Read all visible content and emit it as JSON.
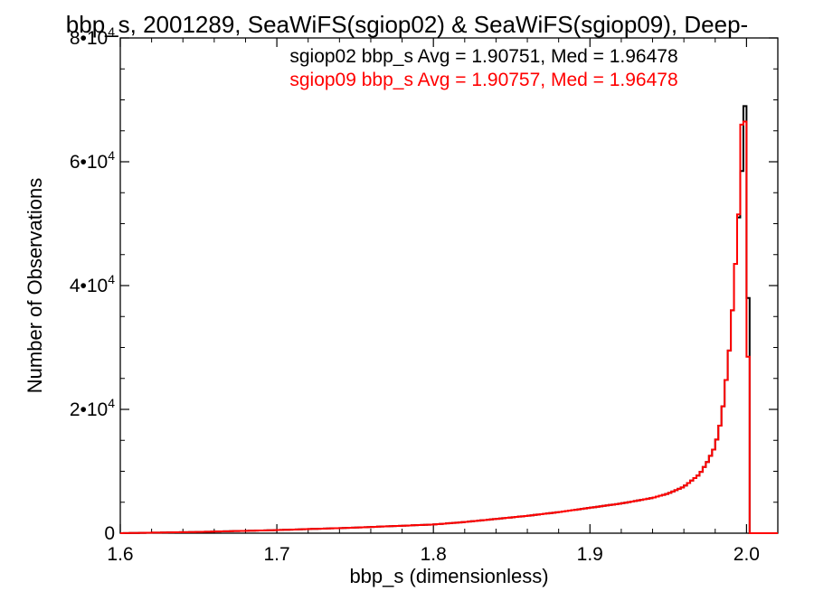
{
  "chart_data": {
    "type": "bar",
    "title": "bbp_s, 2001289, SeaWiFS(sgiop02) & SeaWiFS(sgiop09), Deep-",
    "xlabel": "bbp_s (dimensionless)",
    "ylabel": "Number of Observations",
    "xlim": [
      1.6,
      2.02
    ],
    "ylim": [
      0,
      80000
    ],
    "x_ticks": [
      {
        "value": 1.6,
        "label": "1.6"
      },
      {
        "value": 1.7,
        "label": "1.7"
      },
      {
        "value": 1.8,
        "label": "1.8"
      },
      {
        "value": 1.9,
        "label": "1.9"
      },
      {
        "value": 2.0,
        "label": "2.0"
      }
    ],
    "y_ticks": [
      {
        "value": 0,
        "mant": "0",
        "exp": ""
      },
      {
        "value": 20000,
        "mant": "2•10",
        "exp": "4"
      },
      {
        "value": 40000,
        "mant": "4•10",
        "exp": "4"
      },
      {
        "value": 60000,
        "mant": "6•10",
        "exp": "4"
      },
      {
        "value": 80000,
        "mant": "8•10",
        "exp": "4"
      }
    ],
    "bin_width": 0.002,
    "annotations": [
      {
        "text": "sgiop02 bbp_s Avg = 1.90751, Med = 1.96478",
        "color": "#000000"
      },
      {
        "text": "sgiop09 bbp_s Avg = 1.90757, Med = 1.96478",
        "color": "#ff0000"
      }
    ],
    "series": [
      {
        "color": "#000000",
        "x": [
          1.6,
          1.65,
          1.7,
          1.75,
          1.8,
          1.82,
          1.84,
          1.86,
          1.88,
          1.9,
          1.92,
          1.94,
          1.95,
          1.96,
          1.97,
          1.975,
          1.98,
          1.984,
          1.986,
          1.988,
          1.99,
          1.992,
          1.994,
          1.996,
          1.998,
          2.0,
          2.002,
          2.02
        ],
        "values": [
          0,
          200,
          500,
          900,
          1400,
          1800,
          2300,
          2800,
          3400,
          4100,
          4800,
          5700,
          6400,
          7500,
          9500,
          11500,
          14000,
          18500,
          22500,
          27000,
          32000,
          40000,
          47000,
          55000,
          62000,
          76000,
          0,
          0
        ]
      },
      {
        "color": "#ff0000",
        "x": [
          1.6,
          1.65,
          1.7,
          1.75,
          1.8,
          1.82,
          1.84,
          1.86,
          1.88,
          1.9,
          1.92,
          1.94,
          1.95,
          1.96,
          1.97,
          1.975,
          1.98,
          1.984,
          1.986,
          1.988,
          1.99,
          1.992,
          1.994,
          1.996,
          1.998,
          2.0,
          2.002,
          2.02
        ],
        "values": [
          0,
          200,
          500,
          900,
          1400,
          1800,
          2300,
          2800,
          3400,
          4100,
          4800,
          5700,
          6400,
          7500,
          9500,
          11500,
          14000,
          18500,
          22500,
          27000,
          32000,
          40000,
          47000,
          56000,
          76000,
          57000,
          0,
          0
        ]
      }
    ]
  }
}
